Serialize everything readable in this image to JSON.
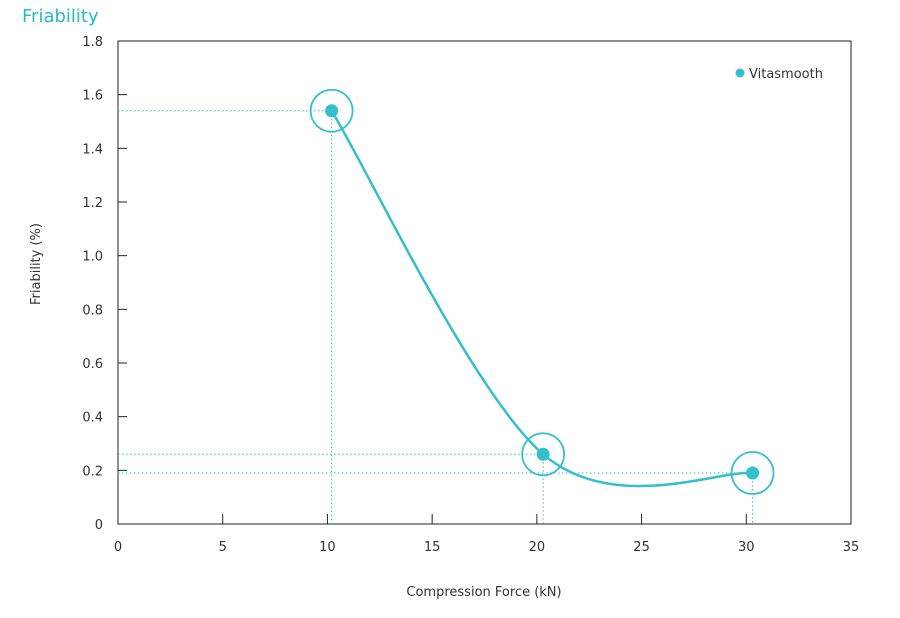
{
  "page": {
    "title": "Friability"
  },
  "chart_data": {
    "type": "line",
    "title": "",
    "xlabel": "Compression Force (kN)",
    "ylabel": "Friability (%)",
    "xlim": [
      0,
      35
    ],
    "ylim": [
      0,
      1.8
    ],
    "xticks": [
      0,
      5,
      10,
      15,
      20,
      25,
      30,
      35
    ],
    "xtick_labels": [
      "0",
      "5",
      "10",
      "15",
      "20",
      "25",
      "30",
      "35"
    ],
    "yticks": [
      0,
      0.2,
      0.4,
      0.6,
      0.8,
      1.0,
      1.2,
      1.4,
      1.6,
      1.8
    ],
    "ytick_labels": [
      "0",
      "0.2",
      "0.4",
      "0.6",
      "0.8",
      "1.0",
      "1.2",
      "1.4",
      "1.6",
      "1.8"
    ],
    "grid": false,
    "legend_position": "top-right",
    "series": [
      {
        "name": "Vitasmooth",
        "color": "#33bfcb",
        "x": [
          10.2,
          20.3,
          30.3
        ],
        "y": [
          1.54,
          0.26,
          0.19
        ],
        "marker": "circle-with-ring",
        "smooth": true
      }
    ]
  }
}
